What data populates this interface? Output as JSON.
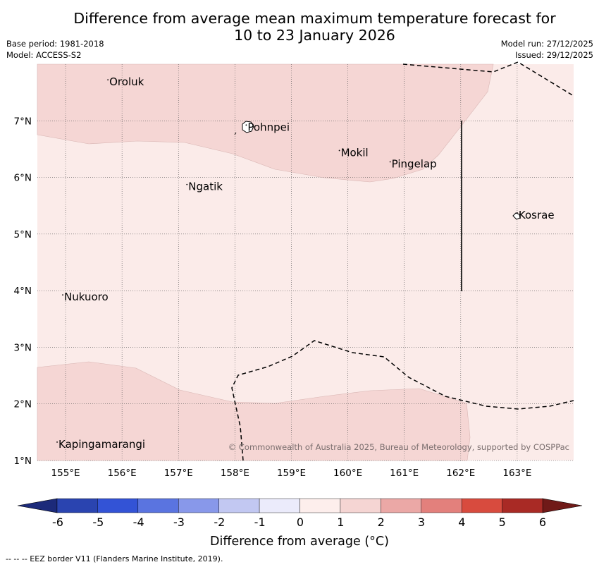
{
  "title": {
    "line1": "Difference from average mean maximum temperature forecast for",
    "line2": "10 to 23 January 2026"
  },
  "meta": {
    "base_period": "Base period: 1981-2018",
    "model": "Model: ACCESS-S2",
    "model_run": "Model run: 27/12/2025",
    "issued": "Issued: 29/12/2025"
  },
  "map": {
    "lon_range": [
      154.5,
      164.0
    ],
    "lat_range": [
      1.0,
      8.0
    ],
    "lon_ticks": [
      "155°E",
      "156°E",
      "157°E",
      "158°E",
      "159°E",
      "160°E",
      "161°E",
      "162°E",
      "163°E"
    ],
    "lat_ticks": [
      "1°N",
      "2°N",
      "3°N",
      "4°N",
      "5°N",
      "6°N",
      "7°N"
    ],
    "places": [
      {
        "name": "Oroluk",
        "lon": 155.75,
        "lat": 7.65
      },
      {
        "name": "Pohnpei",
        "lon": 158.2,
        "lat": 6.85
      },
      {
        "name": "Mokil",
        "lon": 159.85,
        "lat": 6.4
      },
      {
        "name": "Pingelap",
        "lon": 160.75,
        "lat": 6.2
      },
      {
        "name": "Ngatik",
        "lon": 157.15,
        "lat": 5.8
      },
      {
        "name": "Kosrae",
        "lon": 163.0,
        "lat": 5.3
      },
      {
        "name": "Nukuoro",
        "lon": 154.95,
        "lat": 3.85
      },
      {
        "name": "Kapingamarangi",
        "lon": 154.85,
        "lat": 1.25
      }
    ],
    "shade_colors": {
      "background": "#fbebe9",
      "warm_band": "#f5d6d4",
      "land": "#ffffff",
      "grid": "#555555",
      "eez": "#000000"
    }
  },
  "credit": "© Commonwealth of Australia 2025, Bureau of Meteorology, supported by COSPPac",
  "colorbar": {
    "title": "Difference from average (°C)",
    "ticks": [
      "-6",
      "-5",
      "-4",
      "-3",
      "-2",
      "-1",
      "0",
      "1",
      "2",
      "3",
      "4",
      "5",
      "6"
    ],
    "colors": [
      "#2a44b0",
      "#3353d6",
      "#5a74e0",
      "#8898ea",
      "#c2c8f2",
      "#ebebfb",
      "#fdeeec",
      "#f5d5d3",
      "#eba8a6",
      "#e3807c",
      "#d84b3e",
      "#a92a25"
    ],
    "low_extend": "#1c2a7a",
    "high_extend": "#701a18"
  },
  "footnote": "--  --  -- EEZ border V11 (Flanders Marine Institute, 2019)."
}
